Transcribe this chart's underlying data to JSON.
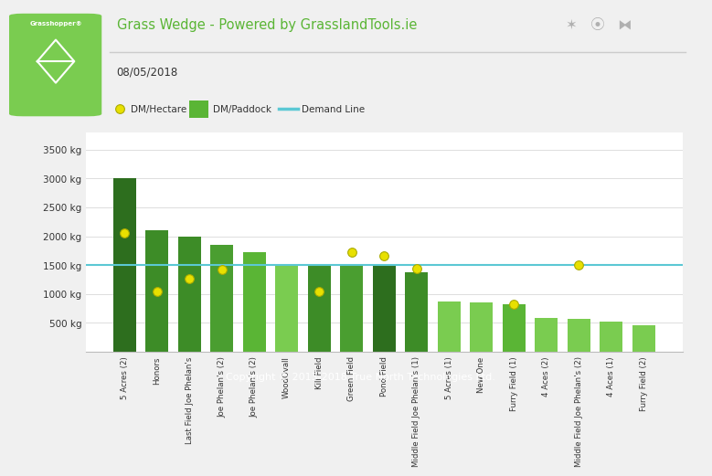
{
  "title": "Grass Wedge - Powered by GrasslandTools.ie",
  "date": "08/05/2018",
  "copyright": "Copyright © 2013-2018 True North Technologies Ltd.",
  "categories": [
    "5 Acres (2)",
    "Honors",
    "Last Field Joe Phelan's",
    "Joe Phelan's (2)",
    "Joe Phelan's (2)",
    "WoodOvall",
    "Kill Field",
    "Green Field",
    "Pond Field",
    "Middle Field Joe Phelan's (1)",
    "5 Acres (1)",
    "New One",
    "Furry Field (1)",
    "4 Aces (2)",
    "Middle Field Joe Phelan's (2)",
    "4 Aces (1)",
    "Furry Field (2)"
  ],
  "bar_heights": [
    3000,
    2100,
    2000,
    1850,
    1720,
    1520,
    1500,
    1490,
    1480,
    1380,
    870,
    850,
    820,
    580,
    570,
    530,
    460
  ],
  "dot_values": [
    2050,
    1050,
    1270,
    1420,
    null,
    null,
    1050,
    1720,
    1660,
    1440,
    null,
    null,
    820,
    null,
    1500,
    null,
    null
  ],
  "demand_line": 1500,
  "bar_colors": [
    "#2d6e1e",
    "#3d8c27",
    "#3d8c27",
    "#4a9e30",
    "#5ab535",
    "#7acc50",
    "#3d8c27",
    "#4a9e30",
    "#2d6e1e",
    "#3d8c27",
    "#7acc50",
    "#7acc50",
    "#5ab535",
    "#7acc50",
    "#7acc50",
    "#7acc50",
    "#7acc50"
  ],
  "ylim": [
    0,
    3800
  ],
  "yticks": [
    500,
    1000,
    1500,
    2000,
    2500,
    3000,
    3500
  ],
  "legend_dot_color": "#e8e000",
  "legend_bar_color": "#5ab535",
  "legend_line_color": "#5bc8d4",
  "demand_line_color": "#5bc8d4",
  "title_color": "#5ab535",
  "header_bg": "#ffffff",
  "footer_bg": "#5ab535",
  "footer_text_color": "#ffffff",
  "logo_bg": "#7acc50",
  "background_color": "#f0f0f0",
  "plot_bg": "#ffffff",
  "grid_color": "#dddddd"
}
